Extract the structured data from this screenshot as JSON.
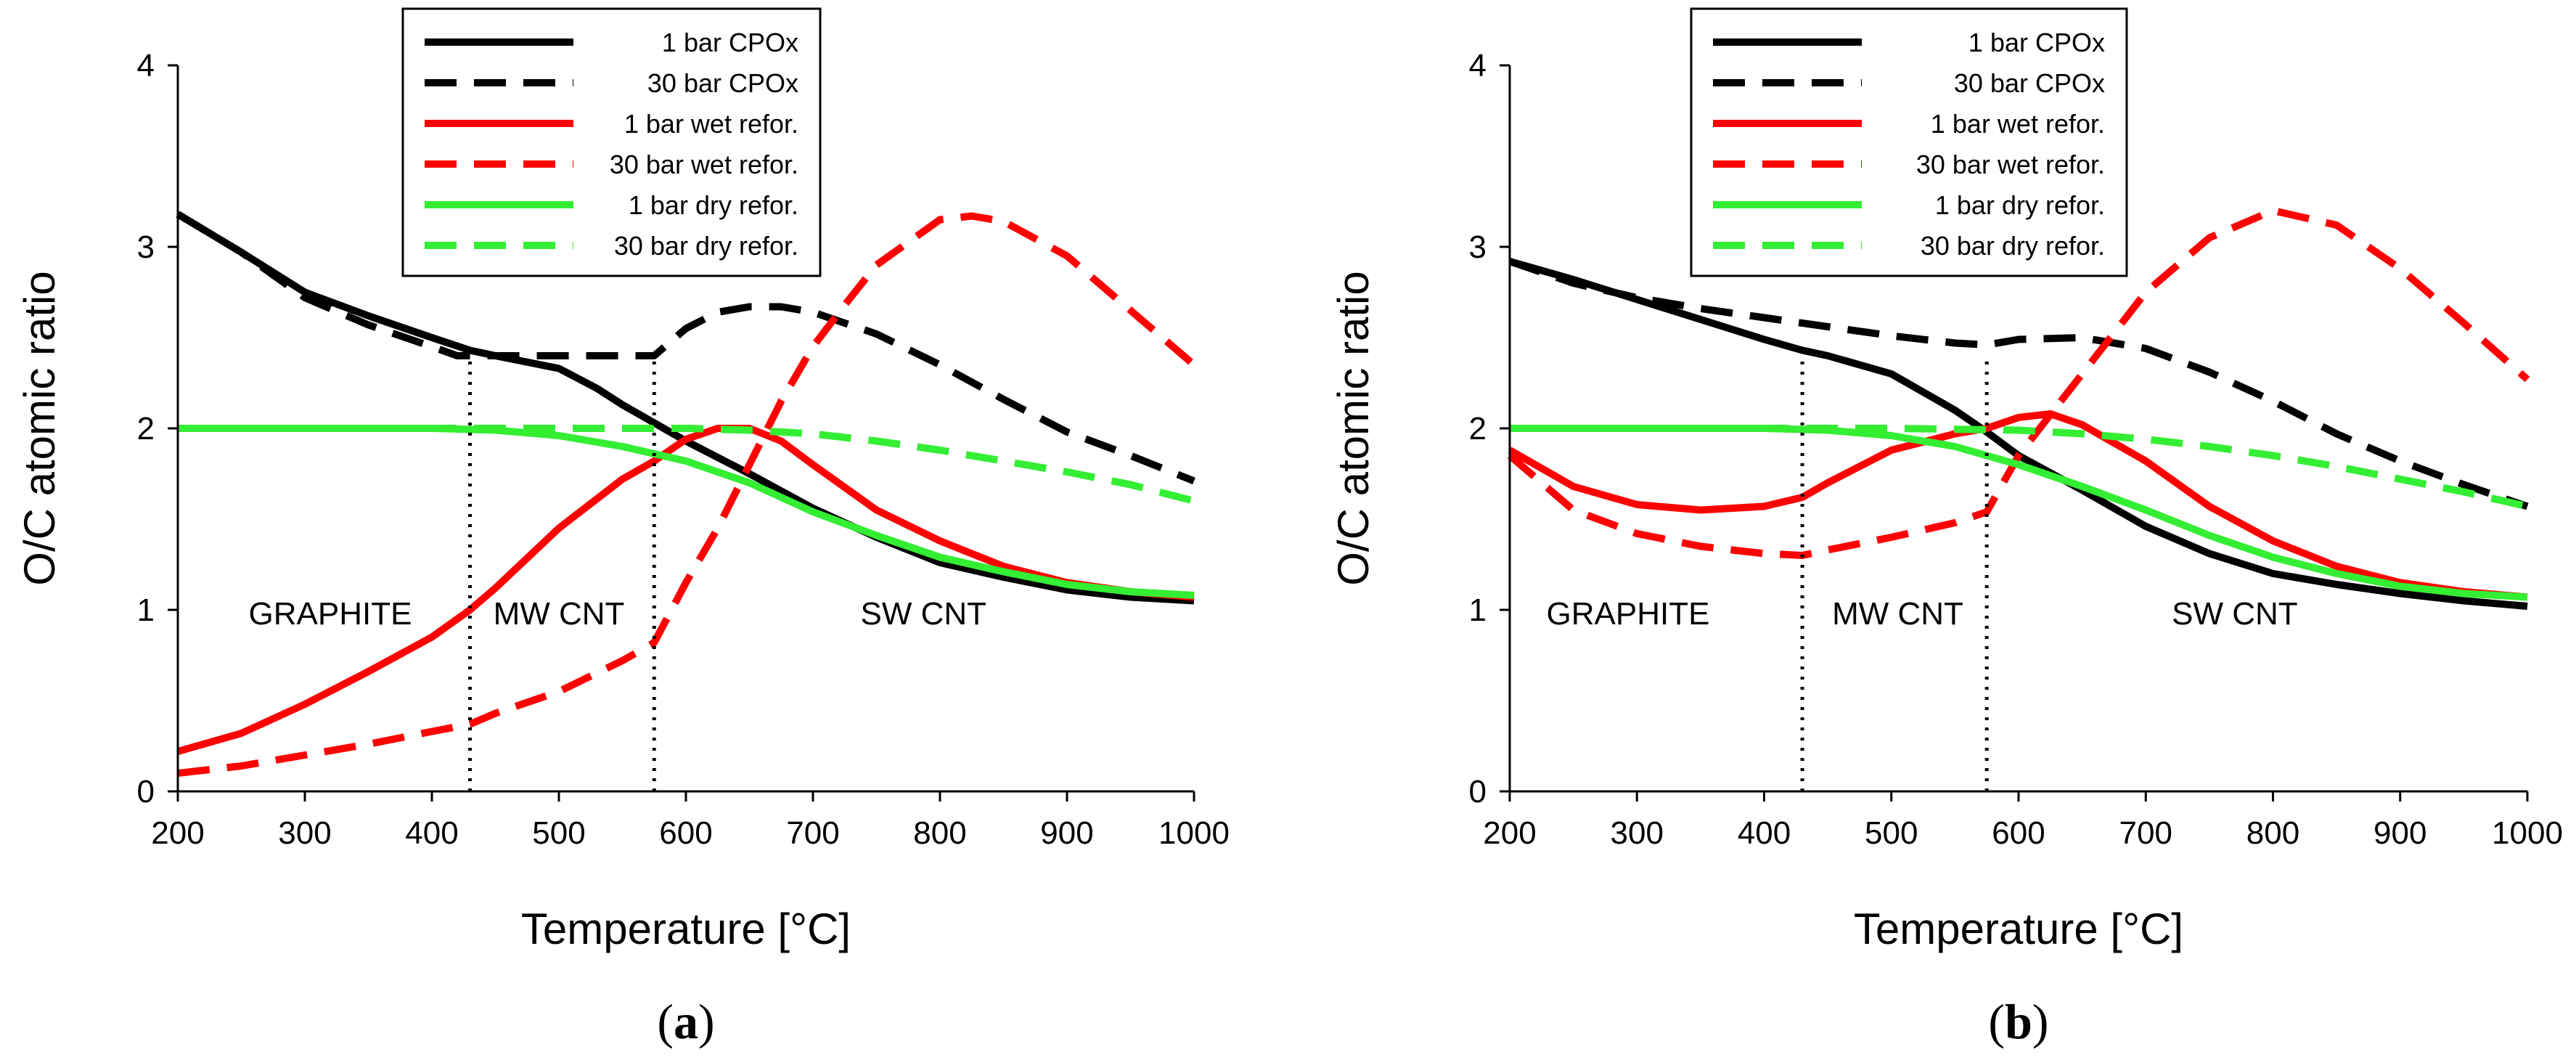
{
  "chart_data": [
    {
      "type": "line",
      "caption": "a",
      "xlabel": "Temperature [°C]",
      "ylabel": "O/C  atomic ratio",
      "xlim": [
        200,
        1000
      ],
      "ylim": [
        0,
        4
      ],
      "xticks": [
        "200",
        "300",
        "400",
        "500",
        "600",
        "700",
        "800",
        "900",
        "1000"
      ],
      "yticks": [
        "0",
        "1",
        "2",
        "3",
        "4"
      ],
      "dividers": [
        430,
        575
      ],
      "regions": [
        {
          "label": "GRAPHITE",
          "x": 320,
          "y": 0.92
        },
        {
          "label": "MW CNT",
          "x": 500,
          "y": 0.92
        },
        {
          "label": "SW CNT",
          "x": 787,
          "y": 0.92
        }
      ],
      "series": [
        {
          "name": "1 bar CPOx",
          "color": "#000000",
          "dash": "solid",
          "x": [
            200,
            250,
            300,
            350,
            400,
            430,
            450,
            500,
            530,
            550,
            575,
            600,
            650,
            700,
            750,
            800,
            850,
            900,
            950,
            1000
          ],
          "y": [
            3.18,
            2.97,
            2.75,
            2.62,
            2.5,
            2.43,
            2.4,
            2.33,
            2.22,
            2.13,
            2.03,
            1.93,
            1.75,
            1.56,
            1.4,
            1.26,
            1.18,
            1.11,
            1.07,
            1.05
          ]
        },
        {
          "name": "30 bar CPOx",
          "color": "#000000",
          "dash": "dashed",
          "x": [
            200,
            250,
            300,
            350,
            400,
            420,
            450,
            500,
            550,
            575,
            600,
            625,
            650,
            675,
            700,
            750,
            800,
            850,
            900,
            950,
            1000
          ],
          "y": [
            3.18,
            2.97,
            2.72,
            2.57,
            2.45,
            2.4,
            2.4,
            2.4,
            2.4,
            2.4,
            2.55,
            2.64,
            2.67,
            2.67,
            2.64,
            2.52,
            2.35,
            2.16,
            1.98,
            1.85,
            1.71
          ]
        },
        {
          "name": "1 bar wet refor.",
          "color": "#ff0000",
          "dash": "solid",
          "x": [
            200,
            250,
            300,
            350,
            400,
            430,
            450,
            500,
            550,
            575,
            600,
            625,
            650,
            675,
            700,
            750,
            800,
            850,
            900,
            950,
            1000
          ],
          "y": [
            0.22,
            0.32,
            0.48,
            0.66,
            0.85,
            1.0,
            1.12,
            1.45,
            1.72,
            1.82,
            1.94,
            2.0,
            2.0,
            1.93,
            1.8,
            1.55,
            1.38,
            1.24,
            1.15,
            1.1,
            1.07
          ]
        },
        {
          "name": "30 bar wet refor.",
          "color": "#ff0000",
          "dash": "dashed",
          "x": [
            200,
            250,
            300,
            350,
            400,
            430,
            450,
            500,
            550,
            575,
            600,
            625,
            650,
            675,
            700,
            725,
            750,
            800,
            825,
            850,
            900,
            950,
            1000
          ],
          "y": [
            0.1,
            0.14,
            0.2,
            0.26,
            0.33,
            0.37,
            0.43,
            0.55,
            0.72,
            0.82,
            1.15,
            1.45,
            1.8,
            2.15,
            2.45,
            2.68,
            2.9,
            3.15,
            3.17,
            3.14,
            2.95,
            2.65,
            2.35
          ]
        },
        {
          "name": "1 bar dry refor.",
          "color": "#33ee33",
          "dash": "solid",
          "x": [
            200,
            300,
            400,
            450,
            500,
            550,
            600,
            650,
            700,
            750,
            800,
            850,
            900,
            950,
            1000
          ],
          "y": [
            2.0,
            2.0,
            2.0,
            1.99,
            1.96,
            1.9,
            1.82,
            1.7,
            1.54,
            1.41,
            1.29,
            1.21,
            1.14,
            1.1,
            1.08
          ]
        },
        {
          "name": "30 bar dry refor.",
          "color": "#33ee33",
          "dash": "dashed",
          "x": [
            200,
            300,
            400,
            500,
            600,
            650,
            700,
            750,
            800,
            850,
            900,
            950,
            1000
          ],
          "y": [
            2.0,
            2.0,
            2.0,
            2.0,
            2.0,
            1.99,
            1.97,
            1.93,
            1.88,
            1.82,
            1.76,
            1.69,
            1.6
          ]
        }
      ]
    },
    {
      "type": "line",
      "caption": "b",
      "xlabel": "Temperature [°C]",
      "ylabel": "O/C  atomic ratio",
      "xlim": [
        200,
        1000
      ],
      "ylim": [
        0,
        4
      ],
      "xticks": [
        "200",
        "300",
        "400",
        "500",
        "600",
        "700",
        "800",
        "900",
        "1000"
      ],
      "yticks": [
        "0",
        "1",
        "2",
        "3",
        "4"
      ],
      "dividers": [
        430,
        575
      ],
      "regions": [
        {
          "label": "GRAPHITE",
          "x": 293,
          "y": 0.92
        },
        {
          "label": "MW CNT",
          "x": 505,
          "y": 0.92
        },
        {
          "label": "SW CNT",
          "x": 770,
          "y": 0.92
        }
      ],
      "series": [
        {
          "name": "1 bar CPOx",
          "color": "#000000",
          "dash": "solid",
          "x": [
            200,
            250,
            300,
            350,
            400,
            430,
            450,
            500,
            550,
            575,
            600,
            650,
            700,
            750,
            800,
            850,
            900,
            950,
            1000
          ],
          "y": [
            2.92,
            2.82,
            2.71,
            2.6,
            2.49,
            2.43,
            2.4,
            2.3,
            2.1,
            1.98,
            1.85,
            1.66,
            1.46,
            1.31,
            1.2,
            1.14,
            1.09,
            1.05,
            1.02
          ]
        },
        {
          "name": "30 bar CPOx",
          "color": "#000000",
          "dash": "dashed",
          "x": [
            200,
            250,
            300,
            350,
            400,
            450,
            500,
            550,
            575,
            600,
            650,
            700,
            750,
            800,
            850,
            900,
            950,
            1000
          ],
          "y": [
            2.92,
            2.8,
            2.72,
            2.66,
            2.61,
            2.56,
            2.51,
            2.47,
            2.46,
            2.49,
            2.5,
            2.44,
            2.31,
            2.15,
            1.97,
            1.82,
            1.69,
            1.57
          ]
        },
        {
          "name": "1 bar wet refor.",
          "color": "#ff0000",
          "dash": "solid",
          "x": [
            200,
            250,
            300,
            350,
            400,
            430,
            450,
            500,
            550,
            575,
            600,
            625,
            650,
            700,
            750,
            800,
            850,
            900,
            950,
            1000
          ],
          "y": [
            1.88,
            1.68,
            1.58,
            1.55,
            1.57,
            1.62,
            1.7,
            1.88,
            1.97,
            2.0,
            2.06,
            2.08,
            2.02,
            1.82,
            1.57,
            1.38,
            1.24,
            1.15,
            1.1,
            1.07
          ]
        },
        {
          "name": "30 bar wet refor.",
          "color": "#ff0000",
          "dash": "dashed",
          "x": [
            200,
            250,
            300,
            350,
            400,
            430,
            450,
            500,
            550,
            575,
            600,
            650,
            700,
            750,
            800,
            850,
            900,
            950,
            1000
          ],
          "y": [
            1.85,
            1.55,
            1.42,
            1.35,
            1.31,
            1.3,
            1.33,
            1.4,
            1.48,
            1.54,
            1.85,
            2.3,
            2.75,
            3.05,
            3.2,
            3.12,
            2.88,
            2.58,
            2.27
          ]
        },
        {
          "name": "1 bar dry refor.",
          "color": "#33ee33",
          "dash": "solid",
          "x": [
            200,
            300,
            400,
            450,
            500,
            550,
            600,
            650,
            700,
            750,
            800,
            850,
            900,
            950,
            1000
          ],
          "y": [
            2.0,
            2.0,
            2.0,
            1.99,
            1.96,
            1.9,
            1.8,
            1.68,
            1.55,
            1.41,
            1.29,
            1.2,
            1.13,
            1.09,
            1.07
          ]
        },
        {
          "name": "30 bar dry refor.",
          "color": "#33ee33",
          "dash": "dashed",
          "x": [
            200,
            300,
            400,
            500,
            600,
            650,
            700,
            750,
            800,
            850,
            900,
            950,
            1000
          ],
          "y": [
            2.0,
            2.0,
            2.0,
            2.0,
            1.99,
            1.97,
            1.94,
            1.9,
            1.85,
            1.79,
            1.72,
            1.65,
            1.57
          ]
        }
      ]
    }
  ]
}
